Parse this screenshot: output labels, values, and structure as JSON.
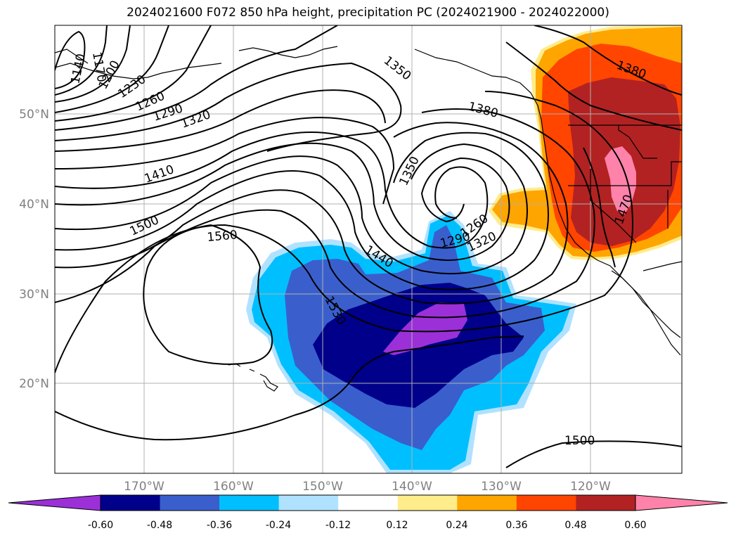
{
  "title": "2024021600 F072 850 hPa height, precipitation PC (2024021900 - 2024022000)",
  "map": {
    "lon_labels": [
      "170°W",
      "160°W",
      "150°W",
      "140°W",
      "130°W",
      "120°W"
    ],
    "lat_labels": [
      "50°N",
      "40°N",
      "30°N",
      "20°N"
    ],
    "contour_labels": [
      "1140",
      "1170",
      "1200",
      "1230",
      "1260",
      "1290",
      "1320",
      "1350",
      "1380",
      "1410",
      "1440",
      "1470",
      "1500",
      "1530",
      "1560"
    ],
    "label_text": {
      "c1140": "1140",
      "c1170": "1170",
      "c1200": "1200",
      "c1230": "1230",
      "c1260a": "1260",
      "c1290a": "1290",
      "c1320a": "1320",
      "c1410": "1410",
      "c1500a": "1500",
      "c1560": "1560",
      "c1350a": "1350",
      "c1380a": "1380",
      "c1350b": "1350",
      "c1440": "1440",
      "c1530": "1530",
      "c1260b": "1260",
      "c1290b": "1290",
      "c1320b": "1320",
      "c1380b": "1380",
      "c1470": "1470",
      "c1500b": "1500"
    }
  },
  "colorbar": {
    "ticks": [
      "-0.60",
      "-0.48",
      "-0.36",
      "-0.24",
      "-0.12",
      "0.12",
      "0.24",
      "0.36",
      "0.48",
      "0.60"
    ],
    "colors": [
      "#9b30d8",
      "#00008b",
      "#3a5fcd",
      "#00bfff",
      "#b0e2ff",
      "#ffffff",
      "#ffec8b",
      "#ffa500",
      "#ff4500",
      "#b22222",
      "#ff82ab",
      "#ff82ab"
    ]
  }
}
